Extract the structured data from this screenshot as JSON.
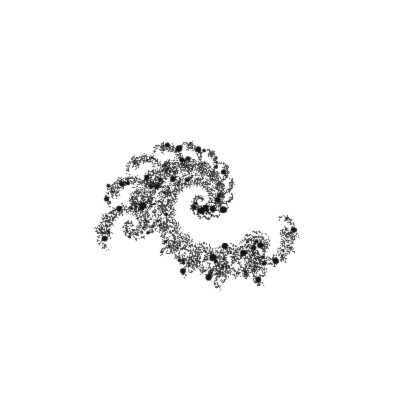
{
  "image": {
    "subject": "fractal-pattern",
    "style": "grayscale",
    "background_color": "#ffffff",
    "palette": {
      "dark": "#141414",
      "mid": "#6e6e6e",
      "light": "#c8c8c8",
      "highlight": "#f2f2f2"
    }
  }
}
